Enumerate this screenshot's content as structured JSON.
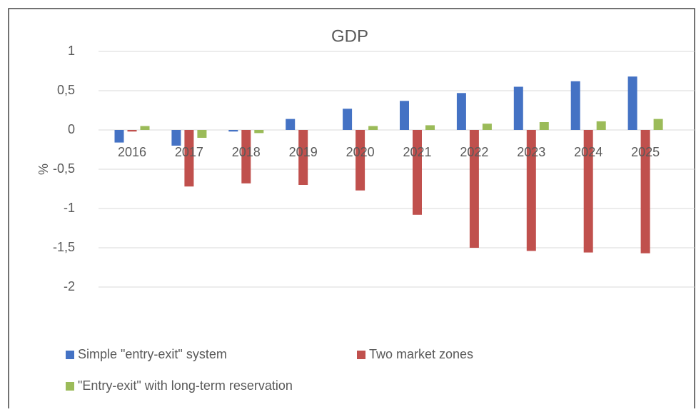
{
  "chart_data": {
    "type": "bar",
    "title": "GDP",
    "y_label": "%",
    "categories": [
      "2016",
      "2017",
      "2018",
      "2019",
      "2020",
      "2021",
      "2022",
      "2023",
      "2024",
      "2025"
    ],
    "series": [
      {
        "name": "Simple \"entry-exit\" system",
        "color": "#4472c4",
        "values": [
          -0.16,
          -0.2,
          -0.02,
          0.14,
          0.27,
          0.37,
          0.47,
          0.55,
          0.62,
          0.68
        ]
      },
      {
        "name": "Two market zones",
        "color": "#c0504d",
        "values": [
          -0.02,
          -0.72,
          -0.68,
          -0.7,
          -0.77,
          -1.08,
          -1.5,
          -1.54,
          -1.56,
          -1.57
        ]
      },
      {
        "name": "\"Entry-exit\" with long-term reservation",
        "color": "#9bbb59",
        "values": [
          0.05,
          -0.1,
          -0.04,
          0,
          0.05,
          0.06,
          0.08,
          0.1,
          0.11,
          0.14
        ]
      }
    ],
    "ylim": [
      -2,
      1
    ],
    "yticks": [
      -2,
      {
        "value": -1.5,
        "label": "-1,5"
      },
      -1,
      {
        "value": -0.5,
        "label": "-0,5"
      },
      0,
      {
        "value": 0.5,
        "label": "0,5"
      },
      1
    ],
    "grid": true
  }
}
